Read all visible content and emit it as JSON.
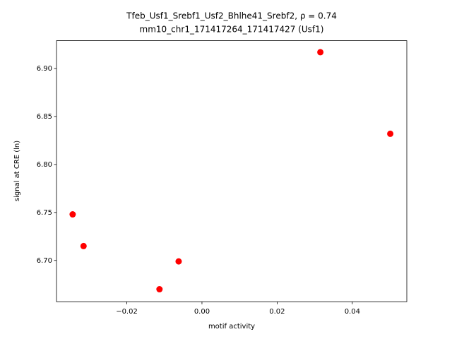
{
  "chart_data": {
    "type": "scatter",
    "title": "Tfeb_Usf1_Srebf1_Usf2_Bhlhe41_Srebf2, ρ = 0.74",
    "subtitle": "mm10_chr1_171417264_171417427 (Usf1)",
    "x_label": "motif activity",
    "y_label": "signal at CRE (ln)",
    "color": "#ff0000",
    "x": [
      -0.0344,
      -0.0315,
      -0.0113,
      -0.0062,
      0.0315,
      0.0501
    ],
    "values": [
      6.748,
      6.715,
      6.67,
      6.699,
      6.917,
      6.832
    ],
    "xlim": [
      -0.0387,
      0.0545
    ],
    "ylim": [
      6.657,
      6.929
    ],
    "xticks": [
      {
        "value": -0.02,
        "label": "−0.02"
      },
      {
        "value": 0,
        "label": "0.00"
      },
      {
        "value": 0.02,
        "label": "0.02"
      },
      {
        "value": 0.04,
        "label": "0.04"
      }
    ],
    "yticks": [
      {
        "value": 6.7,
        "label": "6.70"
      },
      6.75,
      {
        "value": 6.8,
        "label": "6.80"
      },
      6.85,
      {
        "value": 6.9,
        "label": "6.90"
      }
    ]
  }
}
